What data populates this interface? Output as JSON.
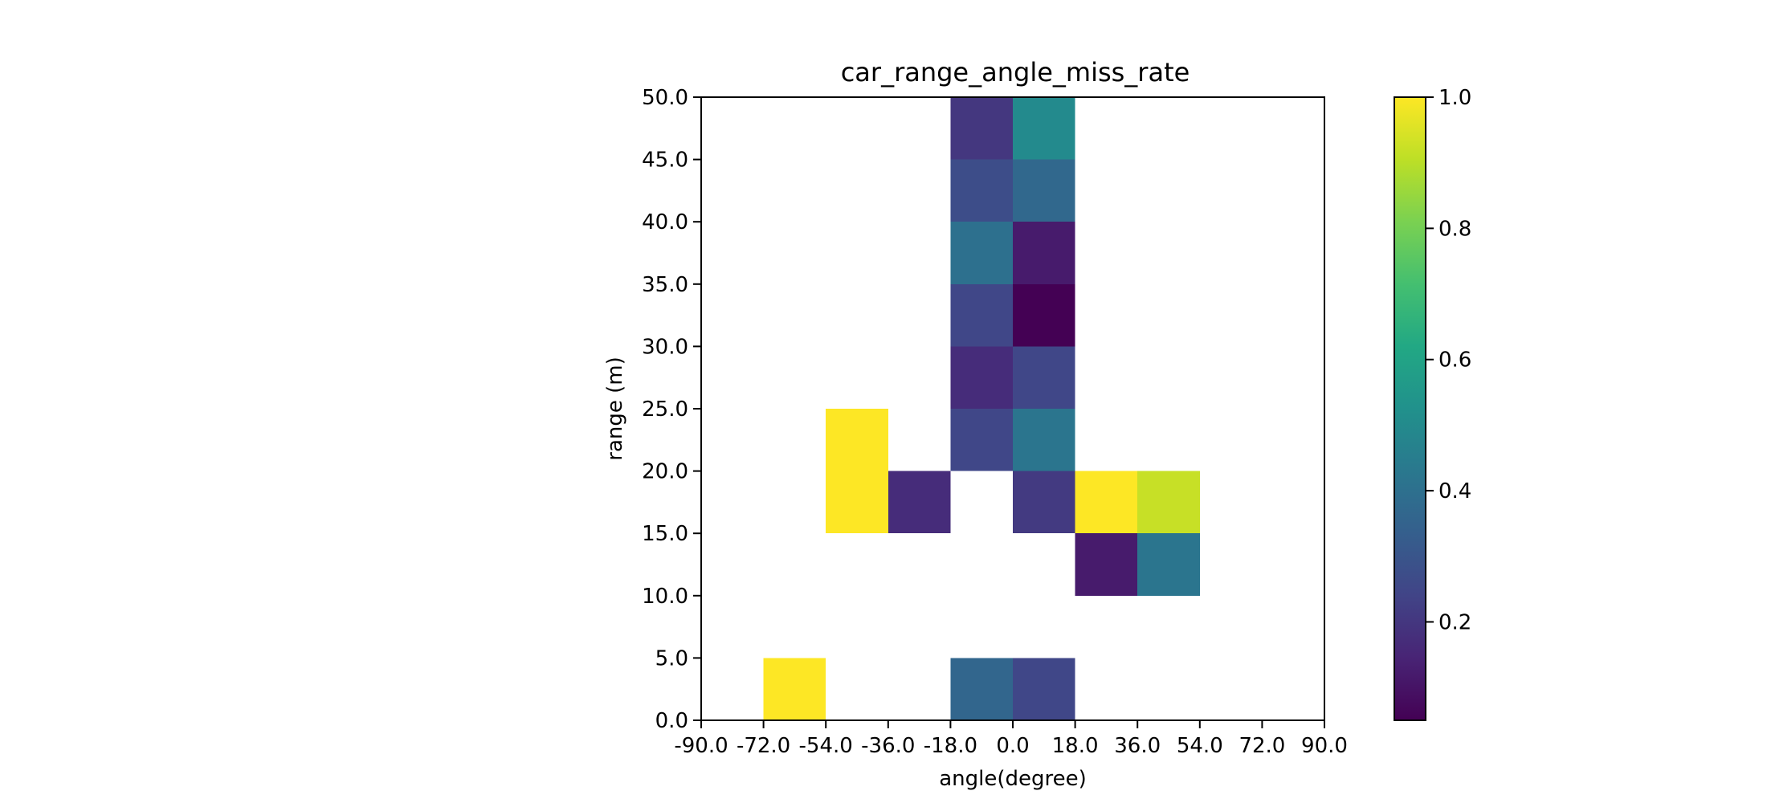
{
  "chart_data": {
    "type": "heatmap",
    "title": "car_range_angle_miss_rate",
    "xlabel": "angle(degree)",
    "ylabel": "range (m)",
    "xlim": [
      -90,
      90
    ],
    "ylim": [
      0,
      50
    ],
    "x_ticks": [
      "-90.0",
      "-72.0",
      "-54.0",
      "-36.0",
      "-18.0",
      "0.0",
      "18.0",
      "36.0",
      "54.0",
      "72.0",
      "90.0"
    ],
    "y_ticks": [
      "0.0",
      "5.0",
      "10.0",
      "15.0",
      "20.0",
      "25.0",
      "30.0",
      "35.0",
      "40.0",
      "45.0",
      "50.0"
    ],
    "x_edges": [
      -90,
      -72,
      -54,
      -36,
      -18,
      0,
      18,
      36,
      54,
      72,
      90
    ],
    "y_edges": [
      0,
      5,
      10,
      15,
      20,
      25,
      30,
      35,
      40,
      45,
      50
    ],
    "cells": [
      {
        "x": [
          -72,
          -54
        ],
        "y": [
          0,
          5
        ],
        "value": 1.0
      },
      {
        "x": [
          -18,
          0
        ],
        "y": [
          0,
          5
        ],
        "value": 0.36
      },
      {
        "x": [
          0,
          18
        ],
        "y": [
          0,
          5
        ],
        "value": 0.25
      },
      {
        "x": [
          18,
          36
        ],
        "y": [
          10,
          15
        ],
        "value": 0.12
      },
      {
        "x": [
          36,
          54
        ],
        "y": [
          10,
          15
        ],
        "value": 0.42
      },
      {
        "x": [
          -54,
          -36
        ],
        "y": [
          15,
          20
        ],
        "value": 1.0
      },
      {
        "x": [
          -36,
          -18
        ],
        "y": [
          15,
          20
        ],
        "value": 0.17
      },
      {
        "x": [
          0,
          18
        ],
        "y": [
          15,
          20
        ],
        "value": 0.21
      },
      {
        "x": [
          18,
          36
        ],
        "y": [
          15,
          20
        ],
        "value": 1.0
      },
      {
        "x": [
          36,
          54
        ],
        "y": [
          15,
          20
        ],
        "value": 0.92
      },
      {
        "x": [
          -54,
          -36
        ],
        "y": [
          20,
          25
        ],
        "value": 1.0
      },
      {
        "x": [
          -18,
          0
        ],
        "y": [
          20,
          25
        ],
        "value": 0.25
      },
      {
        "x": [
          0,
          18
        ],
        "y": [
          20,
          25
        ],
        "value": 0.42
      },
      {
        "x": [
          -18,
          0
        ],
        "y": [
          25,
          30
        ],
        "value": 0.17
      },
      {
        "x": [
          0,
          18
        ],
        "y": [
          25,
          30
        ],
        "value": 0.25
      },
      {
        "x": [
          -18,
          0
        ],
        "y": [
          30,
          35
        ],
        "value": 0.25
      },
      {
        "x": [
          0,
          18
        ],
        "y": [
          30,
          35
        ],
        "value": 0.05
      },
      {
        "x": [
          -18,
          0
        ],
        "y": [
          35,
          40
        ],
        "value": 0.4
      },
      {
        "x": [
          0,
          18
        ],
        "y": [
          35,
          40
        ],
        "value": 0.12
      },
      {
        "x": [
          -18,
          0
        ],
        "y": [
          40,
          45
        ],
        "value": 0.27
      },
      {
        "x": [
          0,
          18
        ],
        "y": [
          40,
          45
        ],
        "value": 0.37
      },
      {
        "x": [
          -18,
          0
        ],
        "y": [
          45,
          50
        ],
        "value": 0.2
      },
      {
        "x": [
          0,
          18
        ],
        "y": [
          45,
          50
        ],
        "value": 0.5
      }
    ],
    "colormap": "viridis",
    "colorbar": {
      "range": [
        0.05,
        1.0
      ],
      "ticks": [
        0.2,
        0.4,
        0.6,
        0.8,
        1.0
      ],
      "tick_labels": [
        "0.2",
        "0.4",
        "0.6",
        "0.8",
        "1.0"
      ]
    },
    "grid": false,
    "legend": "none"
  }
}
